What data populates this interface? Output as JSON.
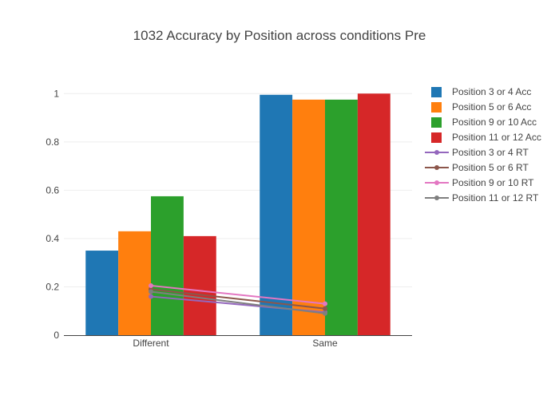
{
  "chart_data": {
    "type": "bar",
    "title": "1032 Accuracy by Position across conditions Pre",
    "xlabel": "",
    "ylabel": "",
    "categories": [
      "Different",
      "Same"
    ],
    "ylim": [
      0,
      1.1
    ],
    "yticks": [
      0,
      0.2,
      0.4,
      0.6,
      0.8,
      1
    ],
    "ytick_labels": [
      "0",
      "0.2",
      "0.4",
      "0.6",
      "0.8",
      "1"
    ],
    "grid": true,
    "legend_position": "right",
    "bar_series": [
      {
        "name": "Position 3 or 4 Acc",
        "values": [
          0.35,
          0.995
        ],
        "color": "#1f77b4"
      },
      {
        "name": "Position 5 or 6 Acc",
        "values": [
          0.43,
          0.975
        ],
        "color": "#ff7f0e"
      },
      {
        "name": "Position 9 or 10 Acc",
        "values": [
          0.575,
          0.975
        ],
        "color": "#2ca02c"
      },
      {
        "name": "Position 11 or 12 Acc",
        "values": [
          0.41,
          1.0
        ],
        "color": "#d62728"
      }
    ],
    "line_series": [
      {
        "name": "Position 3 or 4 RT",
        "values": [
          0.16,
          0.095
        ],
        "color": "#9467bd"
      },
      {
        "name": "Position 5 or 6 RT",
        "values": [
          0.19,
          0.11
        ],
        "color": "#8c564b"
      },
      {
        "name": "Position 9 or 10 RT",
        "values": [
          0.205,
          0.13
        ],
        "color": "#e377c2"
      },
      {
        "name": "Position 11 or 12 RT",
        "values": [
          0.18,
          0.09
        ],
        "color": "#7f7f7f"
      }
    ]
  }
}
